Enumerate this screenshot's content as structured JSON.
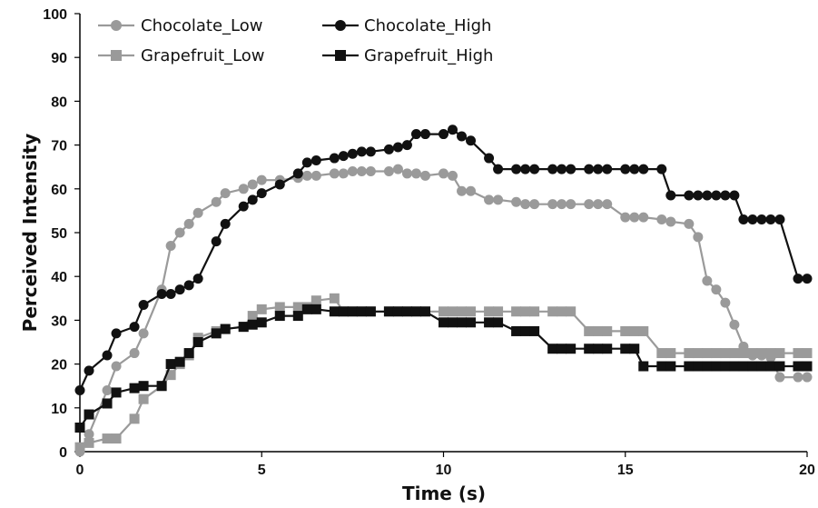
{
  "chart_data": {
    "type": "line",
    "xlabel": "Time (s)",
    "ylabel": "Perceived Intensity",
    "xlim": [
      0,
      20
    ],
    "ylim": [
      0,
      100
    ],
    "xticks": [
      0,
      5,
      10,
      15,
      20
    ],
    "yticks": [
      0,
      10,
      20,
      30,
      40,
      50,
      60,
      70,
      80,
      90,
      100
    ],
    "grid": false,
    "legend_position": "top-left",
    "series": [
      {
        "name": "Chocolate_Low",
        "color": "#9a9a9a",
        "marker": "circle",
        "points": [
          [
            0,
            0
          ],
          [
            0.25,
            4
          ],
          [
            0.75,
            14
          ],
          [
            1,
            19.5
          ],
          [
            1.5,
            22.5
          ],
          [
            1.75,
            27
          ],
          [
            2.25,
            37
          ],
          [
            2.5,
            47
          ],
          [
            2.75,
            50
          ],
          [
            3,
            52
          ],
          [
            3.25,
            54.5
          ],
          [
            3.75,
            57
          ],
          [
            4,
            59
          ],
          [
            4.5,
            60
          ],
          [
            4.75,
            61
          ],
          [
            5,
            62
          ],
          [
            5.5,
            62
          ],
          [
            6,
            62.5
          ],
          [
            6.25,
            63
          ],
          [
            6.5,
            63
          ],
          [
            7,
            63.5
          ],
          [
            7.25,
            63.5
          ],
          [
            7.5,
            64
          ],
          [
            7.75,
            64
          ],
          [
            8,
            64
          ],
          [
            8.5,
            64
          ],
          [
            8.75,
            64.5
          ],
          [
            9,
            63.5
          ],
          [
            9.25,
            63.5
          ],
          [
            9.5,
            63
          ],
          [
            10,
            63.5
          ],
          [
            10.25,
            63
          ],
          [
            10.5,
            59.5
          ],
          [
            10.75,
            59.5
          ],
          [
            11.25,
            57.5
          ],
          [
            11.5,
            57.5
          ],
          [
            12,
            57
          ],
          [
            12.25,
            56.5
          ],
          [
            12.5,
            56.5
          ],
          [
            13,
            56.5
          ],
          [
            13.25,
            56.5
          ],
          [
            13.5,
            56.5
          ],
          [
            14,
            56.5
          ],
          [
            14.25,
            56.5
          ],
          [
            14.5,
            56.5
          ],
          [
            15,
            53.5
          ],
          [
            15.25,
            53.5
          ],
          [
            15.5,
            53.5
          ],
          [
            16,
            53
          ],
          [
            16.25,
            52.5
          ],
          [
            16.75,
            52
          ],
          [
            17,
            49
          ],
          [
            17.25,
            39
          ],
          [
            17.5,
            37
          ],
          [
            17.75,
            34
          ],
          [
            18,
            29
          ],
          [
            18.25,
            24
          ],
          [
            18.5,
            22
          ],
          [
            18.75,
            22
          ],
          [
            19,
            21.5
          ],
          [
            19.25,
            17
          ],
          [
            19.75,
            17
          ],
          [
            20,
            17
          ]
        ]
      },
      {
        "name": "Chocolate_High",
        "color": "#111111",
        "marker": "circle",
        "points": [
          [
            0,
            14
          ],
          [
            0.25,
            18.5
          ],
          [
            0.75,
            22
          ],
          [
            1,
            27
          ],
          [
            1.5,
            28.5
          ],
          [
            1.75,
            33.5
          ],
          [
            2.25,
            36
          ],
          [
            2.5,
            36
          ],
          [
            2.75,
            37
          ],
          [
            3,
            38
          ],
          [
            3.25,
            39.5
          ],
          [
            3.75,
            48
          ],
          [
            4,
            52
          ],
          [
            4.5,
            56
          ],
          [
            4.75,
            57.5
          ],
          [
            5,
            59
          ],
          [
            5.5,
            61
          ],
          [
            6,
            63.5
          ],
          [
            6.25,
            66
          ],
          [
            6.5,
            66.5
          ],
          [
            7,
            67
          ],
          [
            7.25,
            67.5
          ],
          [
            7.5,
            68
          ],
          [
            7.75,
            68.5
          ],
          [
            8,
            68.5
          ],
          [
            8.5,
            69
          ],
          [
            8.75,
            69.5
          ],
          [
            9,
            70
          ],
          [
            9.25,
            72.5
          ],
          [
            9.5,
            72.5
          ],
          [
            10,
            72.5
          ],
          [
            10.25,
            73.5
          ],
          [
            10.5,
            72
          ],
          [
            10.75,
            71
          ],
          [
            11.25,
            67
          ],
          [
            11.5,
            64.5
          ],
          [
            12,
            64.5
          ],
          [
            12.25,
            64.5
          ],
          [
            12.5,
            64.5
          ],
          [
            13,
            64.5
          ],
          [
            13.25,
            64.5
          ],
          [
            13.5,
            64.5
          ],
          [
            14,
            64.5
          ],
          [
            14.25,
            64.5
          ],
          [
            14.5,
            64.5
          ],
          [
            15,
            64.5
          ],
          [
            15.25,
            64.5
          ],
          [
            15.5,
            64.5
          ],
          [
            16,
            64.5
          ],
          [
            16.25,
            58.5
          ],
          [
            16.75,
            58.5
          ],
          [
            17,
            58.5
          ],
          [
            17.25,
            58.5
          ],
          [
            17.5,
            58.5
          ],
          [
            17.75,
            58.5
          ],
          [
            18,
            58.5
          ],
          [
            18.25,
            53
          ],
          [
            18.5,
            53
          ],
          [
            18.75,
            53
          ],
          [
            19,
            53
          ],
          [
            19.25,
            53
          ],
          [
            19.75,
            39.5
          ],
          [
            20,
            39.5
          ]
        ]
      },
      {
        "name": "Grapefruit_Low",
        "color": "#9a9a9a",
        "marker": "square",
        "points": [
          [
            0,
            1
          ],
          [
            0.25,
            2
          ],
          [
            0.75,
            3
          ],
          [
            1,
            3
          ],
          [
            1.5,
            7.5
          ],
          [
            1.75,
            12
          ],
          [
            2.25,
            15
          ],
          [
            2.5,
            17.5
          ],
          [
            2.75,
            20
          ],
          [
            3,
            22
          ],
          [
            3.25,
            26
          ],
          [
            3.75,
            27.5
          ],
          [
            4,
            28
          ],
          [
            4.5,
            28.5
          ],
          [
            4.75,
            31
          ],
          [
            5,
            32.5
          ],
          [
            5.5,
            33
          ],
          [
            6,
            33
          ],
          [
            6.25,
            33
          ],
          [
            6.5,
            34.5
          ],
          [
            7,
            35
          ],
          [
            7.25,
            32
          ],
          [
            7.5,
            32
          ],
          [
            7.75,
            32
          ],
          [
            8,
            32
          ],
          [
            8.5,
            32
          ],
          [
            8.75,
            32
          ],
          [
            9,
            32
          ],
          [
            9.25,
            32
          ],
          [
            9.5,
            32
          ],
          [
            10,
            32
          ],
          [
            10.25,
            32
          ],
          [
            10.5,
            32
          ],
          [
            10.75,
            32
          ],
          [
            11.25,
            32
          ],
          [
            11.5,
            32
          ],
          [
            12,
            32
          ],
          [
            12.25,
            32
          ],
          [
            12.5,
            32
          ],
          [
            13,
            32
          ],
          [
            13.25,
            32
          ],
          [
            13.5,
            32
          ],
          [
            14,
            27.5
          ],
          [
            14.25,
            27.5
          ],
          [
            14.5,
            27.5
          ],
          [
            15,
            27.5
          ],
          [
            15.25,
            27.5
          ],
          [
            15.5,
            27.5
          ],
          [
            16,
            22.5
          ],
          [
            16.25,
            22.5
          ],
          [
            16.75,
            22.5
          ],
          [
            17,
            22.5
          ],
          [
            17.25,
            22.5
          ],
          [
            17.5,
            22.5
          ],
          [
            17.75,
            22.5
          ],
          [
            18,
            22.5
          ],
          [
            18.25,
            22.5
          ],
          [
            18.5,
            22.5
          ],
          [
            18.75,
            22.5
          ],
          [
            19,
            22.5
          ],
          [
            19.25,
            22.5
          ],
          [
            19.75,
            22.5
          ],
          [
            20,
            22.5
          ]
        ]
      },
      {
        "name": "Grapefruit_High",
        "color": "#111111",
        "marker": "square",
        "points": [
          [
            0,
            5.5
          ],
          [
            0.25,
            8.5
          ],
          [
            0.75,
            11
          ],
          [
            1,
            13.5
          ],
          [
            1.5,
            14.5
          ],
          [
            1.75,
            15
          ],
          [
            2.25,
            15
          ],
          [
            2.5,
            20
          ],
          [
            2.75,
            20.5
          ],
          [
            3,
            22.5
          ],
          [
            3.25,
            25
          ],
          [
            3.75,
            27
          ],
          [
            4,
            28
          ],
          [
            4.5,
            28.5
          ],
          [
            4.75,
            29
          ],
          [
            5,
            29.5
          ],
          [
            5.5,
            31
          ],
          [
            6,
            31
          ],
          [
            6.25,
            32.5
          ],
          [
            6.5,
            32.5
          ],
          [
            7,
            32
          ],
          [
            7.25,
            32
          ],
          [
            7.5,
            32
          ],
          [
            7.75,
            32
          ],
          [
            8,
            32
          ],
          [
            8.5,
            32
          ],
          [
            8.75,
            32
          ],
          [
            9,
            32
          ],
          [
            9.25,
            32
          ],
          [
            9.5,
            32
          ],
          [
            10,
            29.5
          ],
          [
            10.25,
            29.5
          ],
          [
            10.5,
            29.5
          ],
          [
            10.75,
            29.5
          ],
          [
            11.25,
            29.5
          ],
          [
            11.5,
            29.5
          ],
          [
            12,
            27.5
          ],
          [
            12.25,
            27.5
          ],
          [
            12.5,
            27.5
          ],
          [
            13,
            23.5
          ],
          [
            13.25,
            23.5
          ],
          [
            13.5,
            23.5
          ],
          [
            14,
            23.5
          ],
          [
            14.25,
            23.5
          ],
          [
            14.5,
            23.5
          ],
          [
            15,
            23.5
          ],
          [
            15.25,
            23.5
          ],
          [
            15.5,
            19.5
          ],
          [
            16,
            19.5
          ],
          [
            16.25,
            19.5
          ],
          [
            16.75,
            19.5
          ],
          [
            17,
            19.5
          ],
          [
            17.25,
            19.5
          ],
          [
            17.5,
            19.5
          ],
          [
            17.75,
            19.5
          ],
          [
            18,
            19.5
          ],
          [
            18.25,
            19.5
          ],
          [
            18.5,
            19.5
          ],
          [
            18.75,
            19.5
          ],
          [
            19,
            19.5
          ],
          [
            19.25,
            19.5
          ],
          [
            19.75,
            19.5
          ],
          [
            20,
            19.5
          ]
        ]
      }
    ]
  }
}
